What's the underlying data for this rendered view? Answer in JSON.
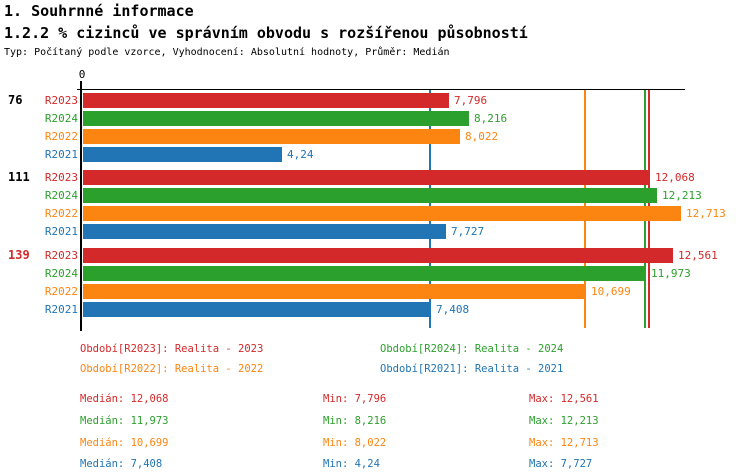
{
  "header": {
    "title": "1. Souhrnné informace",
    "subtitle": "1.2.2 % cizinců ve správním obvodu s rozšířenou působností",
    "meta": "Typ: Počítaný podle vzorce, Vyhodnocení: Absolutní hodnoty, Průměr: Medián"
  },
  "colors": {
    "R2023": "#d3292a",
    "R2024": "#2ca02c",
    "R2022": "#fc8511",
    "R2021": "#2175b4",
    "axis": "#000000",
    "highlight_group_label": "#d3292a"
  },
  "chart_data": {
    "type": "bar",
    "orientation": "horizontal",
    "axis_origin_label": "0",
    "xlim": [
      0,
      12.81
    ],
    "grid": "off",
    "series_order": [
      "R2023",
      "R2024",
      "R2022",
      "R2021"
    ],
    "groups": [
      {
        "label": "76",
        "highlight": false,
        "bars": [
          {
            "series": "R2023",
            "value": 7.796,
            "display": "7,796"
          },
          {
            "series": "R2024",
            "value": 8.216,
            "display": "8,216"
          },
          {
            "series": "R2022",
            "value": 8.022,
            "display": "8,022"
          },
          {
            "series": "R2021",
            "value": 4.24,
            "display": "4,24"
          }
        ]
      },
      {
        "label": "111",
        "highlight": false,
        "bars": [
          {
            "series": "R2023",
            "value": 12.068,
            "display": "12,068"
          },
          {
            "series": "R2024",
            "value": 12.213,
            "display": "12,213"
          },
          {
            "series": "R2022",
            "value": 12.713,
            "display": "12,713"
          },
          {
            "series": "R2021",
            "value": 7.727,
            "display": "7,727"
          }
        ]
      },
      {
        "label": "139",
        "highlight": true,
        "bars": [
          {
            "series": "R2023",
            "value": 12.561,
            "display": "12,561"
          },
          {
            "series": "R2024",
            "value": 11.973,
            "display": "11,973"
          },
          {
            "series": "R2022",
            "value": 10.699,
            "display": "10,699"
          },
          {
            "series": "R2021",
            "value": 7.408,
            "display": "7,408"
          }
        ]
      }
    ],
    "median_lines": [
      {
        "series": "R2023",
        "value": 12.068
      },
      {
        "series": "R2024",
        "value": 11.973
      },
      {
        "series": "R2022",
        "value": 10.699
      },
      {
        "series": "R2021",
        "value": 7.408
      }
    ]
  },
  "legend": [
    {
      "series": "R2023",
      "label": "Období[R2023]: Realita - 2023"
    },
    {
      "series": "R2024",
      "label": "Období[R2024]: Realita - 2024"
    },
    {
      "series": "R2022",
      "label": "Období[R2022]: Realita - 2022"
    },
    {
      "series": "R2021",
      "label": "Období[R2021]: Realita - 2021"
    }
  ],
  "stats": {
    "labels": {
      "median": "Medián",
      "min": "Min",
      "max": "Max"
    },
    "rows": [
      {
        "series": "R2023",
        "median": "12,068",
        "min": "7,796",
        "max": "12,561"
      },
      {
        "series": "R2024",
        "median": "11,973",
        "min": "8,216",
        "max": "12,213"
      },
      {
        "series": "R2022",
        "median": "10,699",
        "min": "8,022",
        "max": "12,713"
      },
      {
        "series": "R2021",
        "median": "7,408",
        "min": "4,24",
        "max": "7,727"
      }
    ]
  }
}
